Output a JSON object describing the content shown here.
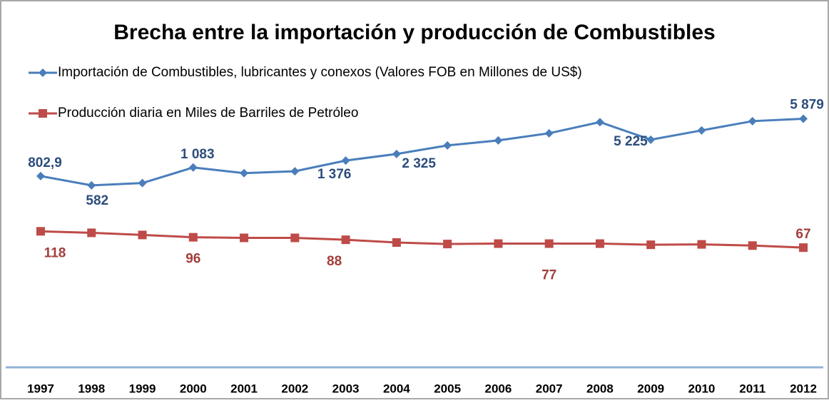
{
  "chart_data": {
    "type": "line",
    "title": "Brecha entre la importación y producción de Combustibles",
    "categories": [
      "1997",
      "1998",
      "1999",
      "2000",
      "2001",
      "2002",
      "2003",
      "2004",
      "2005",
      "2006",
      "2007",
      "2008",
      "2009",
      "2010",
      "2011",
      "2012"
    ],
    "log_scale": true,
    "ylim": [
      10,
      10000
    ],
    "series": [
      {
        "name": "Importación de Combustibles, lubricantes y conexos (Valores FOB en Millones de US$)",
        "color": "#4a7ebb",
        "label_color": "#2c4d7c",
        "marker": "diamond",
        "values": [
          802.9,
          582,
          630,
          1083,
          890,
          950,
          1376,
          1730,
          2325,
          2770,
          3550,
          5225,
          2840,
          3920,
          5410,
          5879
        ],
        "value_labels": [
          "802,9",
          "582",
          null,
          "1 083",
          null,
          null,
          "1 376",
          null,
          "2 325",
          null,
          null,
          "5 225",
          null,
          null,
          null,
          "5 879"
        ]
      },
      {
        "name": "Producción diaria en Miles de Barriles de Petróleo",
        "color": "#be4b48",
        "label_color": "#a23e3b",
        "marker": "square",
        "values": [
          118,
          112,
          104,
          96,
          94,
          94,
          88,
          80,
          76,
          77,
          77,
          77,
          74,
          75,
          72,
          67
        ],
        "value_labels": [
          "118",
          null,
          null,
          "96",
          null,
          null,
          "88",
          null,
          null,
          null,
          "77",
          null,
          null,
          null,
          null,
          "67"
        ]
      }
    ]
  }
}
